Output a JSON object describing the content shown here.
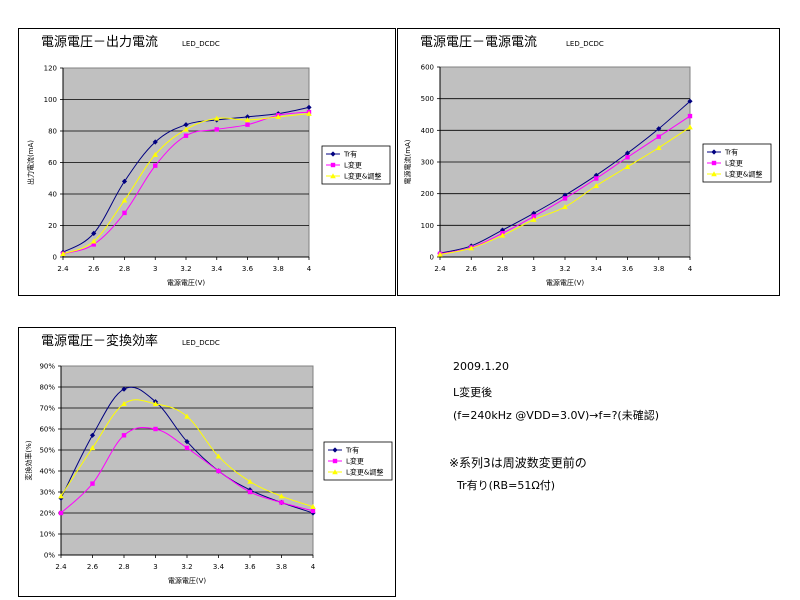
{
  "chart_data": [
    {
      "type": "line",
      "title": "電源電圧－出力電流",
      "subtitle": "LED_DCDC",
      "xlabel": "電源電圧(V)",
      "ylabel": "出力電流(mA)",
      "x": [
        2.4,
        2.6,
        2.8,
        3.0,
        3.2,
        3.4,
        3.6,
        3.8,
        4.0
      ],
      "xlim": [
        2.4,
        4.0
      ],
      "ylim": [
        0,
        120
      ],
      "xticks": [
        "2.4",
        "2.6",
        "2.8",
        "3",
        "3.2",
        "3.4",
        "3.6",
        "3.8",
        "4"
      ],
      "yticks": [
        "0",
        "20",
        "40",
        "60",
        "80",
        "100",
        "120"
      ],
      "grid": true,
      "legend": "right",
      "series": [
        {
          "name": "Tr有",
          "color": "#000080",
          "marker": "diamond",
          "values": [
            3,
            15,
            48,
            73,
            84,
            87,
            89,
            91,
            95
          ]
        },
        {
          "name": "L変更",
          "color": "#FF00FF",
          "marker": "square",
          "values": [
            2,
            8,
            28,
            58,
            77,
            81,
            84,
            90,
            92
          ]
        },
        {
          "name": "L変更&調整",
          "color": "#FFFF00",
          "marker": "triangle",
          "values": [
            2,
            10,
            36,
            65,
            81,
            88,
            87,
            89,
            91
          ]
        }
      ]
    },
    {
      "type": "line",
      "title": "電源電圧－電源電流",
      "subtitle": "LED_DCDC",
      "xlabel": "電源電圧(V)",
      "ylabel": "電源電流(mA)",
      "x": [
        2.4,
        2.6,
        2.8,
        3.0,
        3.2,
        3.4,
        3.6,
        3.8,
        4.0
      ],
      "xlim": [
        2.4,
        4.0
      ],
      "ylim": [
        0,
        600
      ],
      "xticks": [
        "2.4",
        "2.6",
        "2.8",
        "3",
        "3.2",
        "3.4",
        "3.6",
        "3.8",
        "4"
      ],
      "yticks": [
        "0",
        "100",
        "200",
        "300",
        "400",
        "500",
        "600"
      ],
      "grid": true,
      "legend": "right",
      "series": [
        {
          "name": "Tr有",
          "color": "#000080",
          "marker": "diamond",
          "values": [
            12,
            35,
            85,
            138,
            195,
            258,
            328,
            405,
            492
          ]
        },
        {
          "name": "L変更",
          "color": "#FF00FF",
          "marker": "square",
          "values": [
            10,
            30,
            75,
            128,
            185,
            248,
            315,
            380,
            445
          ]
        },
        {
          "name": "L変更&調整",
          "color": "#FFFF00",
          "marker": "triangle",
          "values": [
            8,
            28,
            68,
            118,
            158,
            225,
            285,
            345,
            410
          ]
        }
      ]
    },
    {
      "type": "line",
      "title": "電源電圧－変換効率",
      "subtitle": "LED_DCDC",
      "xlabel": "電源電圧(V)",
      "ylabel": "変換効率(%)",
      "x": [
        2.4,
        2.6,
        2.8,
        3.0,
        3.2,
        3.4,
        3.6,
        3.8,
        4.0
      ],
      "xlim": [
        2.4,
        4.0
      ],
      "ylim": [
        0,
        90
      ],
      "xticks": [
        "2.4",
        "2.6",
        "2.8",
        "3",
        "3.2",
        "3.4",
        "3.6",
        "3.8",
        "4"
      ],
      "yticks": [
        "0%",
        "10%",
        "20%",
        "30%",
        "40%",
        "50%",
        "60%",
        "70%",
        "80%",
        "90%"
      ],
      "grid": true,
      "legend": "right",
      "series": [
        {
          "name": "Tr有",
          "color": "#000080",
          "marker": "diamond",
          "values": [
            27,
            57,
            79,
            73,
            54,
            40,
            31,
            25,
            20
          ]
        },
        {
          "name": "L変更",
          "color": "#FF00FF",
          "marker": "square",
          "values": [
            20,
            34,
            57,
            60,
            51,
            40,
            30,
            25,
            21
          ]
        },
        {
          "name": "L変更&調整",
          "color": "#FFFF00",
          "marker": "triangle",
          "values": [
            28,
            51,
            72,
            72,
            66,
            47,
            35,
            28,
            23
          ]
        }
      ]
    }
  ],
  "notes": {
    "date": "2009.1.20",
    "line1": "L変更後",
    "line2": "(f=240kHz @VDD=3.0V)→f=?(未確認)",
    "line3": "※系列3は周波数変更前の",
    "line4": "Tr有り(RB=51Ω付)"
  }
}
